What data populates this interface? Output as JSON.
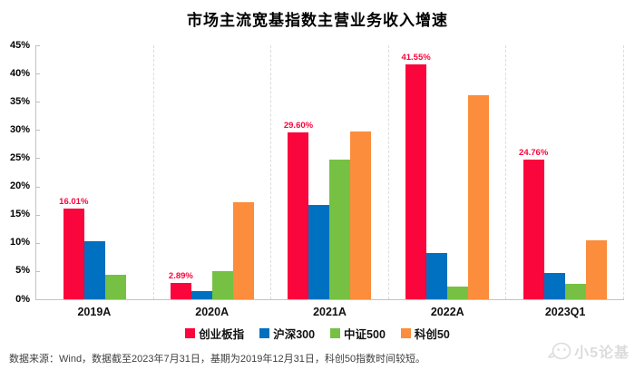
{
  "chart_data": {
    "type": "bar",
    "title": "市场主流宽基指数主营业务收入增速",
    "categories": [
      "2019A",
      "2020A",
      "2021A",
      "2022A",
      "2023Q1"
    ],
    "series": [
      {
        "name": "创业板指",
        "color": "#fa053c",
        "values": [
          16.01,
          2.89,
          29.6,
          41.55,
          24.76
        ],
        "data_labels": [
          "16.01%",
          "2.89%",
          "29.60%",
          "41.55%",
          "24.76%"
        ]
      },
      {
        "name": "沪深300",
        "color": "#0070c0",
        "values": [
          10.3,
          1.5,
          16.7,
          8.2,
          4.6
        ]
      },
      {
        "name": "中证500",
        "color": "#76c143",
        "values": [
          4.3,
          5.0,
          24.8,
          2.3,
          2.7
        ]
      },
      {
        "name": "科创50",
        "color": "#fb8d3c",
        "values": [
          null,
          17.2,
          29.8,
          36.1,
          10.4
        ]
      }
    ],
    "ylim": [
      0,
      45
    ],
    "ytick_labels": [
      "45%",
      "40%",
      "35%",
      "30%",
      "25%",
      "20%",
      "15%",
      "10%",
      "5%",
      "0%"
    ],
    "grid": "off",
    "legend_position": "bottom",
    "group_separator_style": "dashed"
  },
  "footer": {
    "source_text": "数据来源：Wind，数据截至2023年7月31日，基期为2019年12月31日，科创50指数时间较短。"
  },
  "watermark": {
    "text": "小5论基"
  }
}
